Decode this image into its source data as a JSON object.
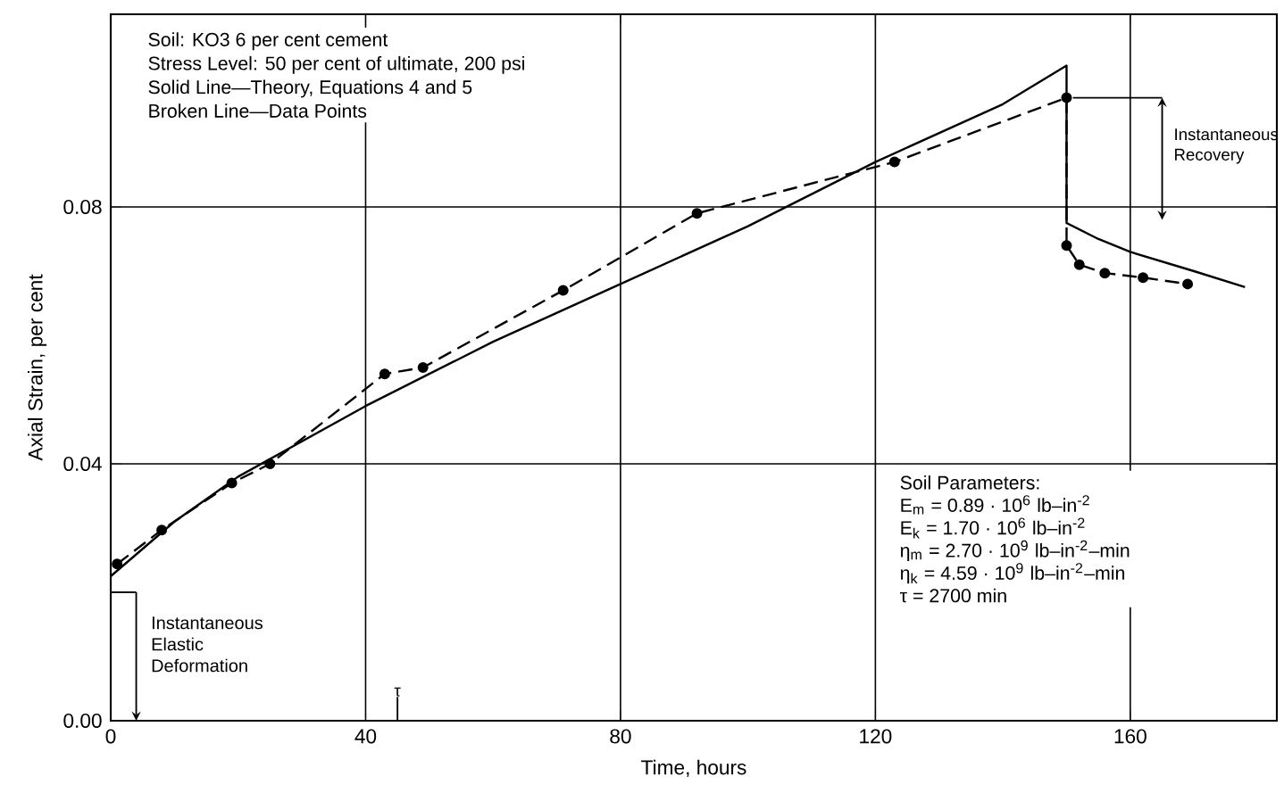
{
  "chart_data": {
    "type": "line",
    "xlabel": "Time, hours",
    "ylabel": "Axial Strain, per cent",
    "xlim": [
      0,
      183
    ],
    "ylim": [
      0,
      0.11
    ],
    "xticks": [
      0,
      40,
      80,
      120,
      160
    ],
    "yticks": [
      {
        "value": 0,
        "label": "0.00"
      },
      {
        "value": 0.04,
        "label": "0.04"
      },
      {
        "value": 0.08,
        "label": "0.08"
      }
    ],
    "grid": true,
    "series": [
      {
        "color": "#000000",
        "line_style": "solid",
        "marker": "none",
        "x": [
          0,
          10,
          20,
          40,
          60,
          80,
          100,
          120,
          140,
          150,
          150,
          155,
          160,
          170,
          178
        ],
        "values": [
          0.0225,
          0.031,
          0.038,
          0.049,
          0.059,
          0.068,
          0.077,
          0.087,
          0.096,
          0.102,
          0.0775,
          0.075,
          0.073,
          0.07,
          0.0675
        ]
      },
      {
        "color": "#000000",
        "line_style": "dashed",
        "marker": "circle",
        "x": [
          1,
          8,
          19,
          25,
          43,
          49,
          71,
          92,
          123,
          150,
          150,
          152,
          156,
          162,
          169
        ],
        "values": [
          0.0244,
          0.0297,
          0.037,
          0.04,
          0.054,
          0.055,
          0.067,
          0.079,
          0.087,
          0.097,
          0.074,
          0.071,
          0.0697,
          0.069,
          0.068
        ]
      }
    ],
    "annotations": [
      "Soil: KO3 6 per cent cement",
      "Stress Level: 50 per cent of ultimate, 200 psi",
      "Solid Line—Theory, Equations 4 and 5",
      "Broken Line—Data Points",
      "Soil Parameters:",
      "E$_{m}$ = 0.89 · 10$^{6}$ lb–in$^{-2}$",
      "E$_{k}$ = 1.70 · 10$^{6}$ lb–in$^{-2}$",
      "η$_{m}$ = 2.70 · 10$^{9}$ lb–in$^{-2}$–min",
      "η$_{k}$ = 4.59 · 10$^{9}$ lb–in$^{-2}$–min",
      "τ = 2700 min",
      "Instantaneous Elastic Deformation",
      "Instantaneous Recovery",
      "τ"
    ]
  }
}
